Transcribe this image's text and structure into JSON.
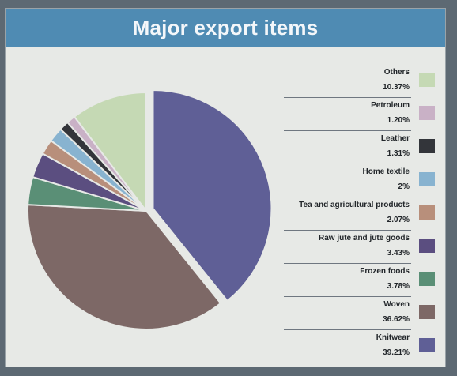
{
  "chart_data": {
    "type": "pie",
    "title": "Major export items",
    "slices": [
      {
        "label": "Knitwear",
        "value_text": "39.21%",
        "value": 39.21,
        "color": "#5f5f96"
      },
      {
        "label": "Woven",
        "value_text": "36.62%",
        "value": 36.62,
        "color": "#7d6866"
      },
      {
        "label": "Frozen foods",
        "value_text": "3.78%",
        "value": 3.78,
        "color": "#5a8f76"
      },
      {
        "label": "Raw jute and jute goods",
        "value_text": "3.43%",
        "value": 3.43,
        "color": "#5b4e80"
      },
      {
        "label": "Tea and agricultural products",
        "value_text": "2.07%",
        "value": 2.07,
        "color": "#b88f7b"
      },
      {
        "label": "Home textile",
        "value_text": "2%",
        "value": 2,
        "color": "#88b3d0"
      },
      {
        "label": "Leather",
        "value_text": "1.31%",
        "value": 1.31,
        "color": "#33353a"
      },
      {
        "label": "Petroleum",
        "value_text": "1.20%",
        "value": 1.2,
        "color": "#c9b1c6"
      },
      {
        "label": "Others",
        "value_text": "10.37%",
        "value": 10.37,
        "color": "#c5d9b4"
      }
    ],
    "legend_order": [
      "Others",
      "Petroleum",
      "Leather",
      "Home textile",
      "Tea and agricultural products",
      "Raw jute and jute goods",
      "Frozen foods",
      "Woven",
      "Knitwear"
    ],
    "legend_position": "right"
  },
  "colors": {
    "title_bar": "#4f8bb3",
    "card_bg": "#e7e9e6"
  }
}
